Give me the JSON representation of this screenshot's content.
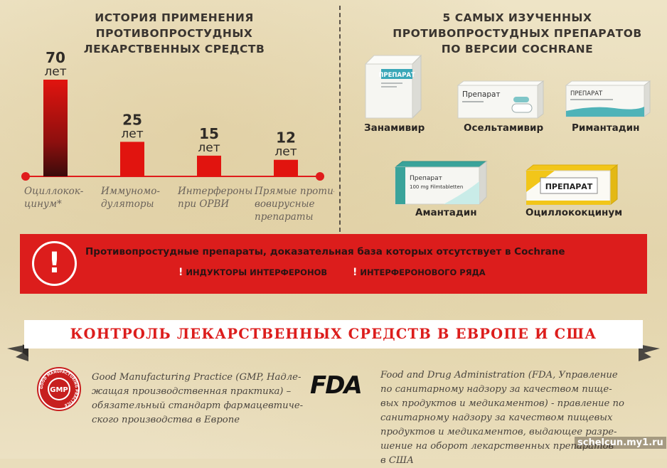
{
  "left_title": [
    "ИСТОРИЯ ПРИМЕНЕНИЯ",
    "ПРОТИВОПРОСТУДНЫХ",
    "ЛЕКАРСТВЕННЫХ СРЕДСТВ"
  ],
  "right_title": [
    "5 САМЫХ ИЗУЧЕННЫХ",
    "ПРОТИВОПРОСТУДНЫХ ПРЕПАРАТОВ",
    "ПО ВЕРСИИ COCHRANE"
  ],
  "chart_data": {
    "type": "bar",
    "title": "ИСТОРИЯ ПРИМЕНЕНИЯ ПРОТИВОПРОСТУДНЫХ ЛЕКАРСТВЕННЫХ СРЕДСТВ",
    "categories": [
      [
        "Оциллокок-",
        "цинум*"
      ],
      [
        "Иммуномо-",
        "дуляторы"
      ],
      [
        "Интерфероны",
        "при ОРВИ"
      ],
      [
        "Прямые проти-",
        "вовирусные",
        "препараты"
      ]
    ],
    "values": [
      70,
      25,
      15,
      12
    ],
    "value_unit": "лет",
    "ylim": [
      0,
      70
    ],
    "grid": false,
    "colors": {
      "bar_top": "#e1140f",
      "bar_dark": "#3b0b0b",
      "axis": "#e01b1b"
    }
  },
  "drugs": [
    {
      "name": "Занамивир",
      "box_label": "ПРЕПАРАТ"
    },
    {
      "name": "Осельтамивир",
      "box_label": "Препарат"
    },
    {
      "name": "Римантадин",
      "box_label": "ПРЕПАРАТ"
    },
    {
      "name": "Амантадин",
      "box_label": "Препарат",
      "box_sub": "100 mg Filmtabletten"
    },
    {
      "name": "Оциллококцинум",
      "box_label": "ПРЕПАРАТ"
    }
  ],
  "banner": {
    "alert_symbol": "!",
    "main": "Противопростудные препараты, доказательная база которых отсутствует в Cochrane",
    "items": [
      "ИНДУКТОРЫ ИНТЕРФЕРОНОВ",
      "ИНТЕРФЕРОНОВОГО РЯДА"
    ],
    "item_marker": "!",
    "color": "#dc1d1c"
  },
  "ribbon_title": "КОНТРОЛЬ ЛЕКАРСТВЕННЫХ СРЕДСТВ В ЕВРОПЕ И США",
  "gmp": {
    "logo_text": "GMP",
    "logo_ring_text": "GOOD MANUFACTURING PRACTICE",
    "lines": [
      "Good Manufacturing Practice (GMP, Надле-",
      "жащая производственная практика) –",
      "обязательный стандарт фармацевтиче-",
      "ского производства в Европе"
    ]
  },
  "fda": {
    "logo_text": "FDA",
    "lines": [
      "Food and Drug Administration (FDA, Управление",
      "по санитарному надзору за качеством пище-",
      "вых продуктов и медикаментов) - правление по",
      "санитарному надзору за качеством пищевых",
      "продуктов и медикаментов, выдающее разре-",
      "шение на оборот лекарственных препаратов",
      "в США"
    ]
  },
  "watermark": "schelcun.my1.ru"
}
